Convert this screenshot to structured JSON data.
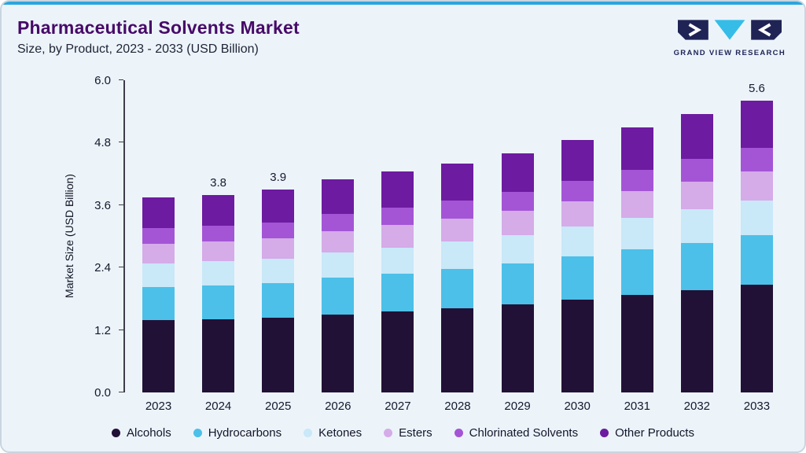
{
  "header": {
    "title": "Pharmaceutical Solvents Market",
    "subtitle": "Size, by Product, 2023 - 2033 (USD Billion)",
    "logo_text": "GRAND VIEW RESEARCH"
  },
  "chart_data": {
    "type": "bar",
    "stacked": true,
    "title": "Pharmaceutical Solvents Market Size, by Product, 2023 - 2033 (USD Billion)",
    "ylabel": "Market Size (USD Billion)",
    "xlabel": "",
    "ylim": [
      0,
      6.0
    ],
    "yticks": [
      0.0,
      1.2,
      2.4,
      3.6,
      4.8,
      6.0
    ],
    "grid": false,
    "legend_position": "bottom",
    "categories": [
      "2023",
      "2024",
      "2025",
      "2026",
      "2027",
      "2028",
      "2029",
      "2030",
      "2031",
      "2032",
      "2033"
    ],
    "series": [
      {
        "name": "Alcohols",
        "color": "#221136",
        "values": [
          1.39,
          1.41,
          1.44,
          1.5,
          1.56,
          1.62,
          1.7,
          1.79,
          1.88,
          1.97,
          2.07
        ]
      },
      {
        "name": "Hydrocarbons",
        "color": "#4cc0e8",
        "values": [
          0.64,
          0.65,
          0.66,
          0.7,
          0.72,
          0.75,
          0.78,
          0.82,
          0.87,
          0.91,
          0.95
        ]
      },
      {
        "name": "Ketones",
        "color": "#c9e8f8",
        "values": [
          0.45,
          0.46,
          0.47,
          0.49,
          0.51,
          0.53,
          0.55,
          0.58,
          0.61,
          0.64,
          0.67
        ]
      },
      {
        "name": "Esters",
        "color": "#d5abe8",
        "values": [
          0.38,
          0.38,
          0.39,
          0.41,
          0.43,
          0.44,
          0.46,
          0.49,
          0.51,
          0.54,
          0.56
        ]
      },
      {
        "name": "Chlorinated Solvents",
        "color": "#a455d6",
        "values": [
          0.3,
          0.3,
          0.31,
          0.33,
          0.34,
          0.35,
          0.37,
          0.39,
          0.41,
          0.43,
          0.45
        ]
      },
      {
        "name": "Other Products",
        "color": "#6d1ba0",
        "values": [
          0.59,
          0.6,
          0.63,
          0.67,
          0.69,
          0.71,
          0.74,
          0.78,
          0.82,
          0.86,
          0.9
        ]
      }
    ],
    "totals": [
      3.75,
      3.8,
      3.9,
      4.1,
      4.25,
      4.4,
      4.6,
      4.85,
      5.1,
      5.35,
      5.6
    ],
    "bar_labels": [
      "",
      "3.8",
      "3.9",
      "",
      "",
      "",
      "",
      "",
      "",
      "",
      "5.6"
    ]
  },
  "colors": {
    "card_background": "#ecf4fa",
    "top_accent": "#2ba6dd",
    "title": "#470a68",
    "logo_navy": "#1f2455",
    "logo_cyan": "#35bde8"
  }
}
